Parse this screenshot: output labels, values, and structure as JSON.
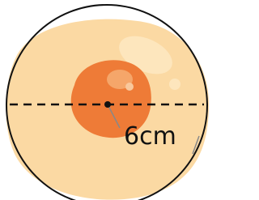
{
  "labels": {
    "radius": "6cm"
  }
}
